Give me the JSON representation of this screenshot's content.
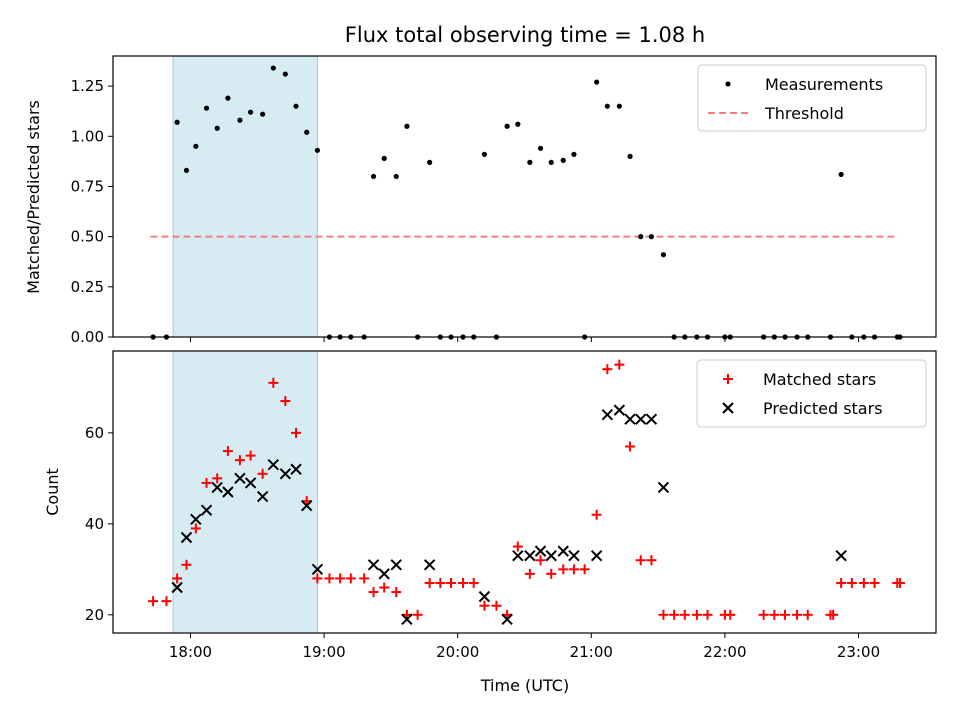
{
  "chart_data": {
    "type": "scatter",
    "title": "Flux total observing time = 1.08 h",
    "xlabel": "Time (UTC)",
    "x_tick_labels": [
      "18:00",
      "19:00",
      "20:00",
      "21:00",
      "22:00",
      "23:00"
    ],
    "xlim_hours": [
      17.42,
      23.58
    ],
    "highlight_span_hours": [
      17.87,
      18.95
    ],
    "top_panel": {
      "ylabel": "Matched/Predicted stars",
      "ylim": [
        0,
        1.4
      ],
      "y_tick_labels": [
        "0.00",
        "0.25",
        "0.50",
        "0.75",
        "1.00",
        "1.25"
      ],
      "legend_location": "top-right",
      "legend": [
        {
          "label": "Measurements",
          "marker": "dot",
          "color": "#000000"
        },
        {
          "label": "Threshold",
          "marker": "dashed-line",
          "color": "#f08080"
        }
      ],
      "threshold": {
        "value": 0.5,
        "x_range_hours": [
          17.7,
          23.3
        ]
      },
      "measurements": [
        [
          17.72,
          0
        ],
        [
          17.82,
          0
        ],
        [
          17.9,
          1.07
        ],
        [
          17.97,
          0.83
        ],
        [
          18.04,
          0.95
        ],
        [
          18.12,
          1.14
        ],
        [
          18.2,
          1.04
        ],
        [
          18.28,
          1.19
        ],
        [
          18.37,
          1.08
        ],
        [
          18.45,
          1.12
        ],
        [
          18.54,
          1.11
        ],
        [
          18.62,
          1.34
        ],
        [
          18.71,
          1.31
        ],
        [
          18.79,
          1.15
        ],
        [
          18.87,
          1.02
        ],
        [
          18.95,
          0.93
        ],
        [
          19.04,
          0
        ],
        [
          19.12,
          0
        ],
        [
          19.2,
          0
        ],
        [
          19.3,
          0
        ],
        [
          19.37,
          0.8
        ],
        [
          19.45,
          0.89
        ],
        [
          19.54,
          0.8
        ],
        [
          19.62,
          1.05
        ],
        [
          19.7,
          0
        ],
        [
          19.79,
          0.87
        ],
        [
          19.87,
          0
        ],
        [
          19.95,
          0
        ],
        [
          20.04,
          0
        ],
        [
          20.12,
          0
        ],
        [
          20.2,
          0.91
        ],
        [
          20.29,
          0
        ],
        [
          20.37,
          1.05
        ],
        [
          20.45,
          1.06
        ],
        [
          20.54,
          0.87
        ],
        [
          20.62,
          0.94
        ],
        [
          20.7,
          0.87
        ],
        [
          20.79,
          0.88
        ],
        [
          20.87,
          0.91
        ],
        [
          20.95,
          0
        ],
        [
          21.04,
          1.27
        ],
        [
          21.12,
          1.15
        ],
        [
          21.21,
          1.15
        ],
        [
          21.29,
          0.9
        ],
        [
          21.37,
          0.5
        ],
        [
          21.45,
          0.5
        ],
        [
          21.54,
          0.41
        ],
        [
          21.62,
          0
        ],
        [
          21.7,
          0
        ],
        [
          21.79,
          0
        ],
        [
          21.87,
          0
        ],
        [
          22.0,
          0
        ],
        [
          22.04,
          0
        ],
        [
          22.29,
          0
        ],
        [
          22.37,
          0
        ],
        [
          22.45,
          0
        ],
        [
          22.54,
          0
        ],
        [
          22.62,
          0
        ],
        [
          22.79,
          0
        ],
        [
          22.87,
          0.81
        ],
        [
          22.95,
          0
        ],
        [
          23.04,
          0
        ],
        [
          23.12,
          0
        ],
        [
          23.29,
          0
        ],
        [
          23.31,
          0
        ]
      ]
    },
    "bottom_panel": {
      "ylabel": "Count",
      "ylim": [
        16,
        78
      ],
      "y_tick_labels": [
        "20",
        "40",
        "60"
      ],
      "legend_location": "top-right",
      "series": [
        {
          "name": "Matched stars",
          "marker": "plus",
          "color": "#ff0000",
          "points": [
            [
              17.72,
              23
            ],
            [
              17.82,
              23
            ],
            [
              17.9,
              28
            ],
            [
              17.97,
              31
            ],
            [
              18.04,
              39
            ],
            [
              18.12,
              49
            ],
            [
              18.2,
              50
            ],
            [
              18.28,
              56
            ],
            [
              18.37,
              54
            ],
            [
              18.45,
              55
            ],
            [
              18.54,
              51
            ],
            [
              18.62,
              71
            ],
            [
              18.71,
              67
            ],
            [
              18.79,
              60
            ],
            [
              18.87,
              45
            ],
            [
              18.95,
              28
            ],
            [
              19.04,
              28
            ],
            [
              19.12,
              28
            ],
            [
              19.2,
              28
            ],
            [
              19.3,
              28
            ],
            [
              19.37,
              25
            ],
            [
              19.45,
              26
            ],
            [
              19.54,
              25
            ],
            [
              19.62,
              20
            ],
            [
              19.7,
              20
            ],
            [
              19.79,
              27
            ],
            [
              19.87,
              27
            ],
            [
              19.95,
              27
            ],
            [
              20.04,
              27
            ],
            [
              20.12,
              27
            ],
            [
              20.2,
              22
            ],
            [
              20.29,
              22
            ],
            [
              20.37,
              20
            ],
            [
              20.45,
              35
            ],
            [
              20.54,
              29
            ],
            [
              20.62,
              32
            ],
            [
              20.7,
              29
            ],
            [
              20.79,
              30
            ],
            [
              20.87,
              30
            ],
            [
              20.95,
              30
            ],
            [
              21.04,
              42
            ],
            [
              21.12,
              74
            ],
            [
              21.21,
              75
            ],
            [
              21.29,
              57
            ],
            [
              21.37,
              32
            ],
            [
              21.45,
              32
            ],
            [
              21.54,
              20
            ],
            [
              21.62,
              20
            ],
            [
              21.7,
              20
            ],
            [
              21.79,
              20
            ],
            [
              21.87,
              20
            ],
            [
              22.0,
              20
            ],
            [
              22.04,
              20
            ],
            [
              22.29,
              20
            ],
            [
              22.37,
              20
            ],
            [
              22.45,
              20
            ],
            [
              22.54,
              20
            ],
            [
              22.62,
              20
            ],
            [
              22.79,
              20
            ],
            [
              22.81,
              20
            ],
            [
              22.87,
              27
            ],
            [
              22.95,
              27
            ],
            [
              23.04,
              27
            ],
            [
              23.12,
              27
            ],
            [
              23.29,
              27
            ],
            [
              23.31,
              27
            ]
          ]
        },
        {
          "name": "Predicted stars",
          "marker": "x",
          "color": "#000000",
          "points": [
            [
              17.9,
              26
            ],
            [
              17.97,
              37
            ],
            [
              18.04,
              41
            ],
            [
              18.12,
              43
            ],
            [
              18.2,
              48
            ],
            [
              18.28,
              47
            ],
            [
              18.37,
              50
            ],
            [
              18.45,
              49
            ],
            [
              18.54,
              46
            ],
            [
              18.62,
              53
            ],
            [
              18.71,
              51
            ],
            [
              18.79,
              52
            ],
            [
              18.87,
              44
            ],
            [
              18.95,
              30
            ],
            [
              19.37,
              31
            ],
            [
              19.45,
              29
            ],
            [
              19.54,
              31
            ],
            [
              19.62,
              19
            ],
            [
              19.79,
              31
            ],
            [
              20.2,
              24
            ],
            [
              20.37,
              19
            ],
            [
              20.45,
              33
            ],
            [
              20.54,
              33
            ],
            [
              20.62,
              34
            ],
            [
              20.7,
              33
            ],
            [
              20.79,
              34
            ],
            [
              20.87,
              33
            ],
            [
              21.04,
              33
            ],
            [
              21.12,
              64
            ],
            [
              21.21,
              65
            ],
            [
              21.29,
              63
            ],
            [
              21.37,
              63
            ],
            [
              21.45,
              63
            ],
            [
              21.54,
              48
            ],
            [
              22.87,
              33
            ]
          ]
        }
      ]
    }
  }
}
